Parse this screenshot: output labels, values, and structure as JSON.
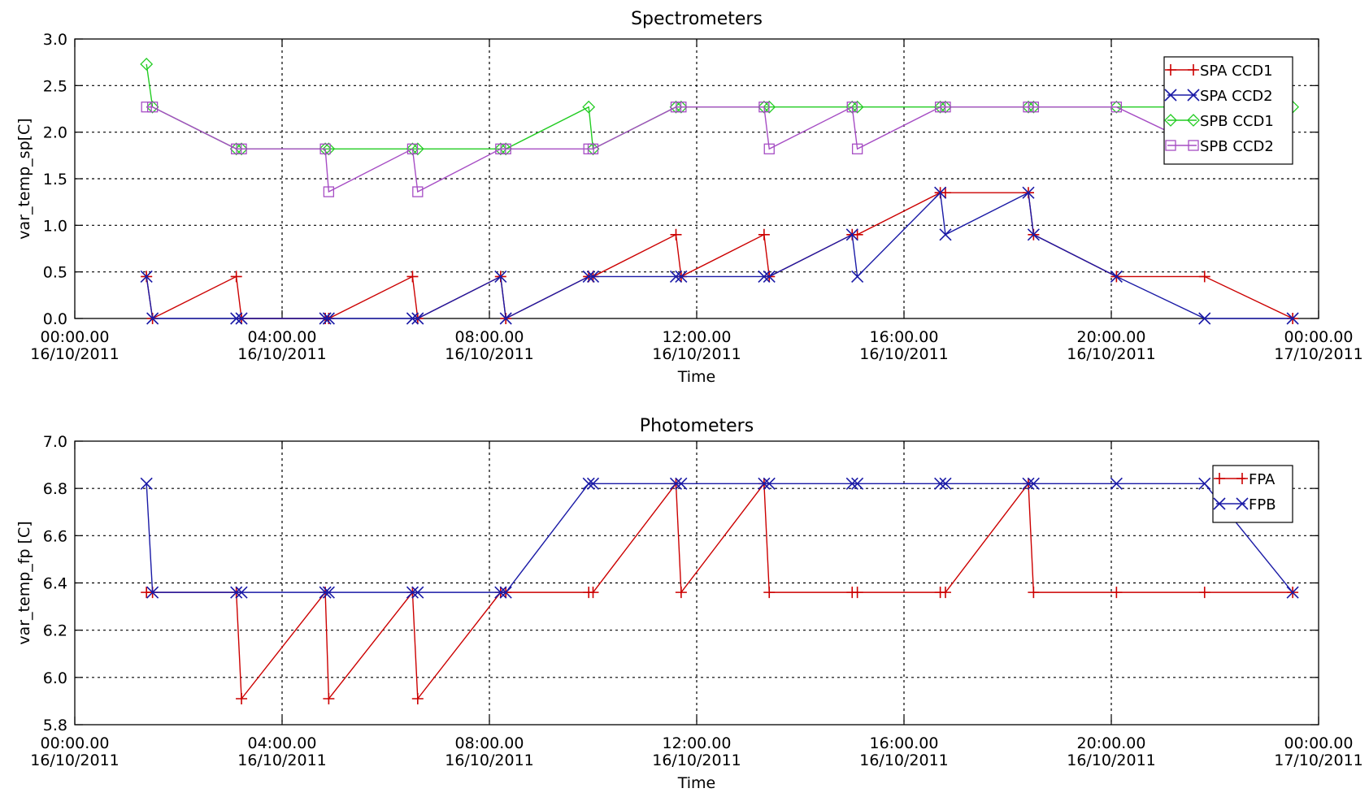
{
  "chart_data": [
    {
      "type": "line",
      "title": "Spectrometers",
      "xlabel": "Time",
      "ylabel": "var_temp_sp[C]",
      "xlim": [
        "16/10/2011 00:00",
        "17/10/2011 00:00"
      ],
      "ylim": [
        0.0,
        3.0
      ],
      "yticks": [
        "0.0",
        "0.5",
        "1.0",
        "1.5",
        "2.0",
        "2.5",
        "3.0"
      ],
      "xticks": [
        {
          "time": "00:00.00",
          "date": "16/10/2011"
        },
        {
          "time": "04:00.00",
          "date": "16/10/2011"
        },
        {
          "time": "08:00.00",
          "date": "16/10/2011"
        },
        {
          "time": "12:00.00",
          "date": "16/10/2011"
        },
        {
          "time": "16:00.00",
          "date": "16/10/2011"
        },
        {
          "time": "20:00.00",
          "date": "16/10/2011"
        },
        {
          "time": "00:00.00",
          "date": "17/10/2011"
        }
      ],
      "grid": true,
      "legend_position": "top-right",
      "series": [
        {
          "name": "SPA CCD1",
          "color": "#cc0000",
          "marker": "plus",
          "points": [
            [
              "16/10/2011 01:23",
              0.45
            ],
            [
              "16/10/2011 01:30",
              0.0
            ],
            [
              "16/10/2011 03:07",
              0.45
            ],
            [
              "16/10/2011 03:13",
              0.0
            ],
            [
              "16/10/2011 04:50",
              0.0
            ],
            [
              "16/10/2011 04:54",
              0.0
            ],
            [
              "16/10/2011 06:31",
              0.45
            ],
            [
              "16/10/2011 06:37",
              0.0
            ],
            [
              "16/10/2011 08:13",
              0.45
            ],
            [
              "16/10/2011 08:19",
              0.0
            ],
            [
              "16/10/2011 09:55",
              0.45
            ],
            [
              "16/10/2011 10:00",
              0.45
            ],
            [
              "16/10/2011 11:36",
              0.9
            ],
            [
              "16/10/2011 11:42",
              0.45
            ],
            [
              "16/10/2011 13:18",
              0.9
            ],
            [
              "16/10/2011 13:24",
              0.45
            ],
            [
              "16/10/2011 15:00",
              0.9
            ],
            [
              "16/10/2011 15:06",
              0.9
            ],
            [
              "16/10/2011 16:42",
              1.35
            ],
            [
              "16/10/2011 16:48",
              1.35
            ],
            [
              "16/10/2011 18:24",
              1.35
            ],
            [
              "16/10/2011 18:30",
              0.9
            ],
            [
              "16/10/2011 20:06",
              0.45
            ],
            [
              "16/10/2011 21:48",
              0.45
            ],
            [
              "16/10/2011 23:30",
              0.0
            ]
          ]
        },
        {
          "name": "SPA CCD2",
          "color": "#1a1aa6",
          "marker": "x",
          "points": [
            [
              "16/10/2011 01:23",
              0.45
            ],
            [
              "16/10/2011 01:30",
              0.0
            ],
            [
              "16/10/2011 03:07",
              0.0
            ],
            [
              "16/10/2011 03:13",
              0.0
            ],
            [
              "16/10/2011 04:50",
              0.0
            ],
            [
              "16/10/2011 04:54",
              0.0
            ],
            [
              "16/10/2011 06:31",
              0.0
            ],
            [
              "16/10/2011 06:37",
              0.0
            ],
            [
              "16/10/2011 08:13",
              0.45
            ],
            [
              "16/10/2011 08:19",
              0.0
            ],
            [
              "16/10/2011 09:55",
              0.45
            ],
            [
              "16/10/2011 10:00",
              0.45
            ],
            [
              "16/10/2011 11:36",
              0.45
            ],
            [
              "16/10/2011 11:42",
              0.45
            ],
            [
              "16/10/2011 13:18",
              0.45
            ],
            [
              "16/10/2011 13:24",
              0.45
            ],
            [
              "16/10/2011 15:00",
              0.9
            ],
            [
              "16/10/2011 15:06",
              0.45
            ],
            [
              "16/10/2011 16:42",
              1.35
            ],
            [
              "16/10/2011 16:48",
              0.9
            ],
            [
              "16/10/2011 18:24",
              1.35
            ],
            [
              "16/10/2011 18:30",
              0.9
            ],
            [
              "16/10/2011 20:06",
              0.45
            ],
            [
              "16/10/2011 21:48",
              0.0
            ],
            [
              "16/10/2011 23:30",
              0.0
            ]
          ]
        },
        {
          "name": "SPB CCD1",
          "color": "#22cc22",
          "marker": "diamond",
          "points": [
            [
              "16/10/2011 01:23",
              2.73
            ],
            [
              "16/10/2011 01:30",
              2.27
            ],
            [
              "16/10/2011 03:07",
              1.82
            ],
            [
              "16/10/2011 03:13",
              1.82
            ],
            [
              "16/10/2011 04:50",
              1.82
            ],
            [
              "16/10/2011 04:54",
              1.82
            ],
            [
              "16/10/2011 06:31",
              1.82
            ],
            [
              "16/10/2011 06:37",
              1.82
            ],
            [
              "16/10/2011 08:13",
              1.82
            ],
            [
              "16/10/2011 08:19",
              1.82
            ],
            [
              "16/10/2011 09:55",
              2.27
            ],
            [
              "16/10/2011 10:00",
              1.82
            ],
            [
              "16/10/2011 11:36",
              2.27
            ],
            [
              "16/10/2011 11:42",
              2.27
            ],
            [
              "16/10/2011 13:18",
              2.27
            ],
            [
              "16/10/2011 13:24",
              2.27
            ],
            [
              "16/10/2011 15:00",
              2.27
            ],
            [
              "16/10/2011 15:06",
              2.27
            ],
            [
              "16/10/2011 16:42",
              2.27
            ],
            [
              "16/10/2011 16:48",
              2.27
            ],
            [
              "16/10/2011 18:24",
              2.27
            ],
            [
              "16/10/2011 18:30",
              2.27
            ],
            [
              "16/10/2011 20:06",
              2.27
            ],
            [
              "16/10/2011 21:48",
              2.27
            ],
            [
              "16/10/2011 23:30",
              2.27
            ]
          ]
        },
        {
          "name": "SPB CCD2",
          "color": "#a64dc4",
          "marker": "square",
          "points": [
            [
              "16/10/2011 01:23",
              2.27
            ],
            [
              "16/10/2011 01:30",
              2.27
            ],
            [
              "16/10/2011 03:07",
              1.82
            ],
            [
              "16/10/2011 03:13",
              1.82
            ],
            [
              "16/10/2011 04:50",
              1.82
            ],
            [
              "16/10/2011 04:54",
              1.36
            ],
            [
              "16/10/2011 06:31",
              1.82
            ],
            [
              "16/10/2011 06:37",
              1.36
            ],
            [
              "16/10/2011 08:13",
              1.82
            ],
            [
              "16/10/2011 08:19",
              1.82
            ],
            [
              "16/10/2011 09:55",
              1.82
            ],
            [
              "16/10/2011 10:00",
              1.82
            ],
            [
              "16/10/2011 11:36",
              2.27
            ],
            [
              "16/10/2011 11:42",
              2.27
            ],
            [
              "16/10/2011 13:18",
              2.27
            ],
            [
              "16/10/2011 13:24",
              1.82
            ],
            [
              "16/10/2011 15:00",
              2.27
            ],
            [
              "16/10/2011 15:06",
              1.82
            ],
            [
              "16/10/2011 16:42",
              2.27
            ],
            [
              "16/10/2011 16:48",
              2.27
            ],
            [
              "16/10/2011 18:24",
              2.27
            ],
            [
              "16/10/2011 18:30",
              2.27
            ],
            [
              "16/10/2011 20:06",
              2.27
            ],
            [
              "16/10/2011 21:48",
              1.82
            ]
          ]
        }
      ]
    },
    {
      "type": "line",
      "title": "Photometers",
      "xlabel": "Time",
      "ylabel": "var_temp_fp [C]",
      "xlim": [
        "16/10/2011 00:00",
        "17/10/2011 00:00"
      ],
      "ylim": [
        5.8,
        7.0
      ],
      "yticks": [
        "5.8",
        "6.0",
        "6.2",
        "6.4",
        "6.6",
        "6.8",
        "7.0"
      ],
      "xticks": [
        {
          "time": "00:00.00",
          "date": "16/10/2011"
        },
        {
          "time": "04:00.00",
          "date": "16/10/2011"
        },
        {
          "time": "08:00.00",
          "date": "16/10/2011"
        },
        {
          "time": "12:00.00",
          "date": "16/10/2011"
        },
        {
          "time": "16:00.00",
          "date": "16/10/2011"
        },
        {
          "time": "20:00.00",
          "date": "16/10/2011"
        },
        {
          "time": "00:00.00",
          "date": "17/10/2011"
        }
      ],
      "grid": true,
      "legend_position": "top-right",
      "series": [
        {
          "name": "FPA",
          "color": "#cc0000",
          "marker": "plus",
          "points": [
            [
              "16/10/2011 01:23",
              6.36
            ],
            [
              "16/10/2011 01:30",
              6.36
            ],
            [
              "16/10/2011 03:07",
              6.36
            ],
            [
              "16/10/2011 03:13",
              5.91
            ],
            [
              "16/10/2011 04:50",
              6.36
            ],
            [
              "16/10/2011 04:54",
              5.91
            ],
            [
              "16/10/2011 06:31",
              6.36
            ],
            [
              "16/10/2011 06:37",
              5.91
            ],
            [
              "16/10/2011 08:13",
              6.36
            ],
            [
              "16/10/2011 08:19",
              6.36
            ],
            [
              "16/10/2011 09:55",
              6.36
            ],
            [
              "16/10/2011 10:00",
              6.36
            ],
            [
              "16/10/2011 11:36",
              6.82
            ],
            [
              "16/10/2011 11:42",
              6.36
            ],
            [
              "16/10/2011 13:18",
              6.82
            ],
            [
              "16/10/2011 13:24",
              6.36
            ],
            [
              "16/10/2011 15:00",
              6.36
            ],
            [
              "16/10/2011 15:06",
              6.36
            ],
            [
              "16/10/2011 16:42",
              6.36
            ],
            [
              "16/10/2011 16:48",
              6.36
            ],
            [
              "16/10/2011 18:24",
              6.82
            ],
            [
              "16/10/2011 18:30",
              6.36
            ],
            [
              "16/10/2011 20:06",
              6.36
            ],
            [
              "16/10/2011 21:48",
              6.36
            ],
            [
              "16/10/2011 23:30",
              6.36
            ]
          ]
        },
        {
          "name": "FPB",
          "color": "#1a1aa6",
          "marker": "x",
          "points": [
            [
              "16/10/2011 01:23",
              6.82
            ],
            [
              "16/10/2011 01:30",
              6.36
            ],
            [
              "16/10/2011 03:07",
              6.36
            ],
            [
              "16/10/2011 03:13",
              6.36
            ],
            [
              "16/10/2011 04:50",
              6.36
            ],
            [
              "16/10/2011 04:54",
              6.36
            ],
            [
              "16/10/2011 06:31",
              6.36
            ],
            [
              "16/10/2011 06:37",
              6.36
            ],
            [
              "16/10/2011 08:13",
              6.36
            ],
            [
              "16/10/2011 08:19",
              6.36
            ],
            [
              "16/10/2011 09:55",
              6.82
            ],
            [
              "16/10/2011 10:00",
              6.82
            ],
            [
              "16/10/2011 11:36",
              6.82
            ],
            [
              "16/10/2011 11:42",
              6.82
            ],
            [
              "16/10/2011 13:18",
              6.82
            ],
            [
              "16/10/2011 13:24",
              6.82
            ],
            [
              "16/10/2011 15:00",
              6.82
            ],
            [
              "16/10/2011 15:06",
              6.82
            ],
            [
              "16/10/2011 16:42",
              6.82
            ],
            [
              "16/10/2011 16:48",
              6.82
            ],
            [
              "16/10/2011 18:24",
              6.82
            ],
            [
              "16/10/2011 18:30",
              6.82
            ],
            [
              "16/10/2011 20:06",
              6.82
            ],
            [
              "16/10/2011 21:48",
              6.82
            ],
            [
              "16/10/2011 23:30",
              6.36
            ]
          ]
        }
      ]
    }
  ]
}
